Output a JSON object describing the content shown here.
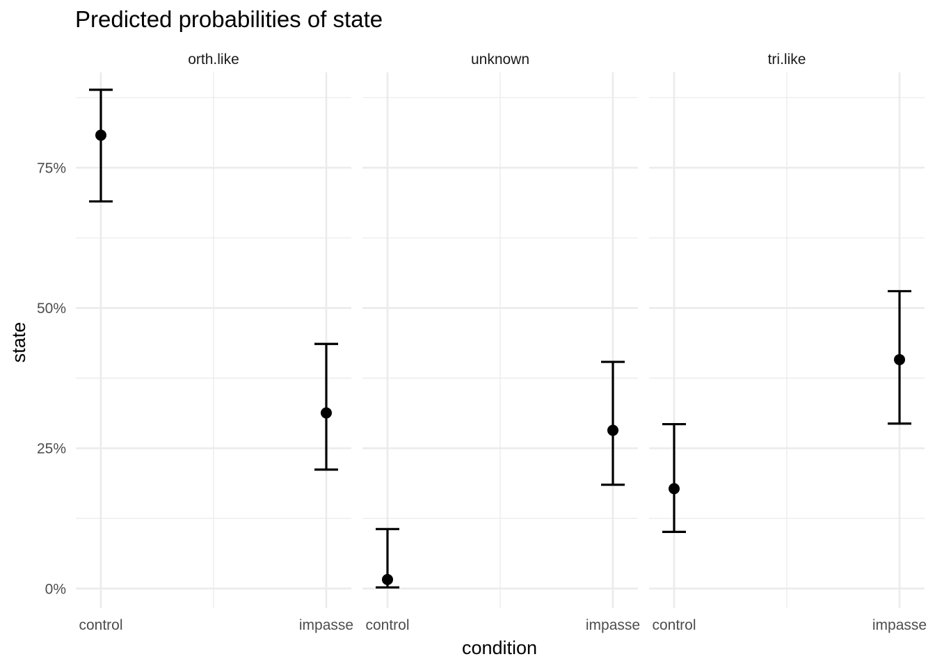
{
  "chart_data": {
    "type": "scatter",
    "title": "Predicted probabilities of state",
    "xlabel": "condition",
    "ylabel": "state",
    "ylim": [
      -0.035,
      0.92
    ],
    "y_ticks": [
      0,
      0.25,
      0.5,
      0.75
    ],
    "y_tick_labels": [
      "0%",
      "25%",
      "50%",
      "75%"
    ],
    "categories": [
      "control",
      "impasse"
    ],
    "grid": true,
    "facets": [
      {
        "label": "orth.like",
        "points": [
          {
            "x": "control",
            "y": 0.808,
            "ymin": 0.69,
            "ymax": 0.889
          },
          {
            "x": "impasse",
            "y": 0.313,
            "ymin": 0.212,
            "ymax": 0.436
          }
        ]
      },
      {
        "label": "unknown",
        "points": [
          {
            "x": "control",
            "y": 0.016,
            "ymin": 0.002,
            "ymax": 0.106
          },
          {
            "x": "impasse",
            "y": 0.282,
            "ymin": 0.185,
            "ymax": 0.404
          }
        ]
      },
      {
        "label": "tri.like",
        "points": [
          {
            "x": "control",
            "y": 0.178,
            "ymin": 0.101,
            "ymax": 0.293
          },
          {
            "x": "impasse",
            "y": 0.408,
            "ymin": 0.294,
            "ymax": 0.53
          }
        ]
      }
    ]
  }
}
